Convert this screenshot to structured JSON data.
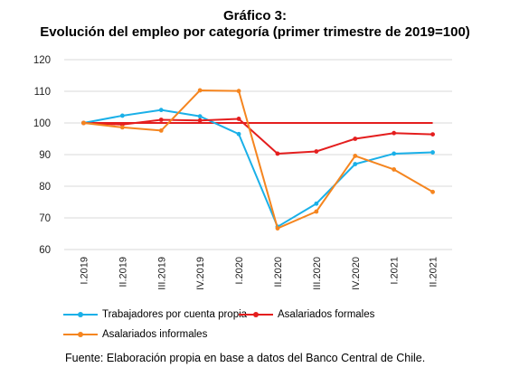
{
  "chart_data": {
    "type": "line",
    "title": "Gráfico 3:",
    "subtitle": "Evolución del empleo por categoría (primer trimestre de 2019=100)",
    "xlabel": "",
    "ylabel": "",
    "categories": [
      "I.2019",
      "II.2019",
      "III.2019",
      "IV.2019",
      "I.2020",
      "II.2020",
      "III.2020",
      "IV.2020",
      "I.2021",
      "II.2021"
    ],
    "ylim": [
      60,
      120
    ],
    "yticks": [
      60,
      70,
      80,
      90,
      100,
      110,
      120
    ],
    "grid": true,
    "legend_position": "bottom",
    "reference_line": {
      "value": 100,
      "color": "#e41e1e"
    },
    "series": [
      {
        "name": "Trabajadores por cuenta propia",
        "color": "#1ab0e8",
        "values": [
          100,
          102.3,
          104.1,
          102.1,
          96.5,
          67.2,
          74.5,
          87,
          90.3,
          90.7
        ]
      },
      {
        "name": "Asalariados formales",
        "color": "#e41e1e",
        "values": [
          100,
          99.5,
          101,
          100.8,
          101.3,
          90.3,
          91,
          95,
          96.8,
          96.4
        ]
      },
      {
        "name": "Asalariados informales",
        "color": "#f5851f",
        "values": [
          100,
          98.6,
          97.6,
          110.3,
          110.1,
          66.7,
          72,
          89.6,
          85.3,
          78.2
        ]
      }
    ]
  },
  "source": "Fuente: Elaboración propia en base a datos del Banco Central de Chile."
}
